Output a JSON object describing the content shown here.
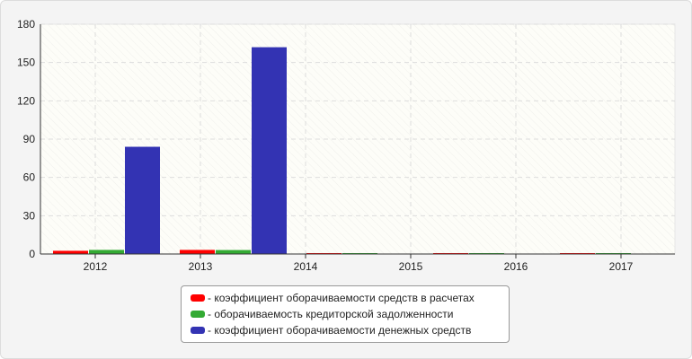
{
  "chart_data": {
    "type": "bar",
    "categories": [
      "2012",
      "2013",
      "2014",
      "2015",
      "2016",
      "2017"
    ],
    "ylim": [
      0,
      180
    ],
    "yticks": [
      0,
      30,
      60,
      90,
      120,
      150,
      180
    ],
    "grid": true,
    "legend_placement": "bottom-center",
    "series": [
      {
        "name": "коэффициент оборачиваемости средств в расчетах",
        "color": "#ff0000",
        "values": [
          2.5,
          3.2,
          0.7,
          0.7,
          0.7,
          0
        ]
      },
      {
        "name": "оборачиваемость кредиторской задолженности",
        "color": "#33aa33",
        "values": [
          3.2,
          3.1,
          0.7,
          0.7,
          0.7,
          0
        ]
      },
      {
        "name": "коэффициент оборачиваемости денежных средств",
        "color": "#3333b3",
        "values": [
          84,
          162,
          0,
          0,
          0,
          0
        ]
      }
    ]
  }
}
